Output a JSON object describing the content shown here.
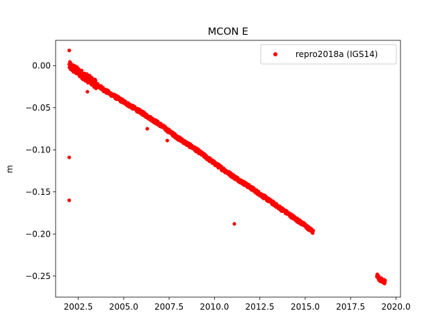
{
  "chart_data": {
    "type": "scatter",
    "title": "MCON E",
    "xlabel": "",
    "ylabel": "m",
    "xlim": [
      2001.25,
      2020.25
    ],
    "ylim": [
      -0.275,
      0.03
    ],
    "x_ticks": [
      2002.5,
      2005.0,
      2007.5,
      2010.0,
      2012.5,
      2015.0,
      2017.5,
      2020.0
    ],
    "x_tick_labels": [
      "2002.5",
      "2005.0",
      "2007.5",
      "2010.0",
      "2012.5",
      "2015.0",
      "2017.5",
      "2020.0"
    ],
    "y_ticks": [
      0.0,
      -0.05,
      -0.1,
      -0.15,
      -0.2,
      -0.25
    ],
    "y_tick_labels": [
      "0.00",
      "−0.05",
      "−0.10",
      "−0.15",
      "−0.20",
      "−0.25"
    ],
    "grid": false,
    "legend_position": "top-right",
    "series": [
      {
        "name": "repro2018a (IGS14)",
        "color": "#ff0000",
        "marker": "circle",
        "trend": [
          {
            "x": 2002.0,
            "y": 0.0
          },
          {
            "x": 2003.0,
            "y": -0.015
          },
          {
            "x": 2004.0,
            "y": -0.03
          },
          {
            "x": 2005.0,
            "y": -0.043
          },
          {
            "x": 2006.0,
            "y": -0.056
          },
          {
            "x": 2007.0,
            "y": -0.07
          },
          {
            "x": 2008.0,
            "y": -0.086
          },
          {
            "x": 2009.0,
            "y": -0.1
          },
          {
            "x": 2010.0,
            "y": -0.116
          },
          {
            "x": 2011.0,
            "y": -0.131
          },
          {
            "x": 2012.0,
            "y": -0.145
          },
          {
            "x": 2013.0,
            "y": -0.16
          },
          {
            "x": 2014.0,
            "y": -0.175
          },
          {
            "x": 2015.0,
            "y": -0.19
          },
          {
            "x": 2015.45,
            "y": -0.198
          }
        ],
        "later_segment": [
          {
            "x": 2018.95,
            "y": -0.249
          },
          {
            "x": 2019.1,
            "y": -0.254
          },
          {
            "x": 2019.25,
            "y": -0.255
          },
          {
            "x": 2019.4,
            "y": -0.257
          }
        ],
        "outliers": [
          {
            "x": 2002.0,
            "y": 0.018
          },
          {
            "x": 2002.0,
            "y": -0.109
          },
          {
            "x": 2002.0,
            "y": -0.16
          },
          {
            "x": 2011.1,
            "y": -0.188
          },
          {
            "x": 2003.0,
            "y": -0.031
          },
          {
            "x": 2006.3,
            "y": -0.075
          },
          {
            "x": 2007.4,
            "y": -0.089
          }
        ]
      }
    ]
  }
}
